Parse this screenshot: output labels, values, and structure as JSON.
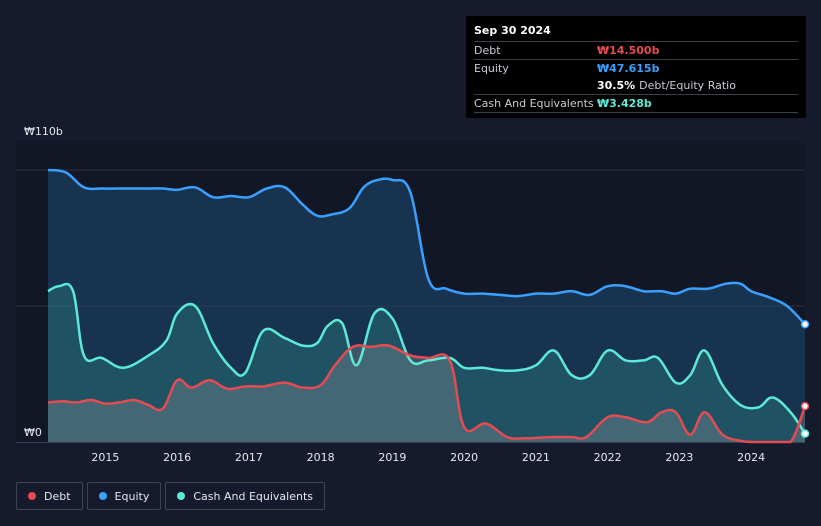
{
  "chart_data": {
    "type": "area",
    "title": "",
    "xlabel": "",
    "ylabel": "",
    "y_axis": {
      "max_label": "₩110b",
      "min_label": "₩0",
      "ylim": [
        0,
        110
      ]
    },
    "x_axis": {
      "ticks": [
        "2015",
        "2016",
        "2017",
        "2018",
        "2019",
        "2020",
        "2021",
        "2022",
        "2023",
        "2024"
      ],
      "xlim": [
        2014.2,
        2024.75
      ]
    },
    "grid": true,
    "legend_position": "bottom-left",
    "series": [
      {
        "name": "Debt",
        "color": "#e64a52",
        "x": [
          2014.2,
          2014.4,
          2014.6,
          2014.8,
          2015.0,
          2015.2,
          2015.4,
          2015.6,
          2015.8,
          2016.0,
          2016.2,
          2016.45,
          2016.7,
          2016.95,
          2017.2,
          2017.5,
          2017.75,
          2018.0,
          2018.2,
          2018.45,
          2018.7,
          2018.95,
          2019.25,
          2019.5,
          2019.8,
          2020.0,
          2020.3,
          2020.6,
          2020.85,
          2021.2,
          2021.5,
          2021.7,
          2022.0,
          2022.25,
          2022.55,
          2022.75,
          2022.95,
          2023.15,
          2023.35,
          2023.6,
          2023.85,
          2024.0,
          2024.3,
          2024.55,
          2024.75
        ],
        "values": [
          16,
          16.5,
          16,
          17,
          15.5,
          16,
          17,
          15,
          13.5,
          25,
          22,
          25,
          21.5,
          22.5,
          22.5,
          24,
          22,
          23,
          31,
          38.5,
          38.5,
          39,
          35,
          34,
          33,
          6,
          7.5,
          2,
          1.5,
          2,
          2,
          2,
          10,
          10,
          8,
          12,
          12,
          3,
          12,
          3,
          0.5,
          0,
          0,
          0,
          14.5
        ]
      },
      {
        "name": "Equity",
        "color": "#3aa0ff",
        "x": [
          2014.2,
          2014.45,
          2014.7,
          2014.95,
          2015.2,
          2015.5,
          2015.8,
          2016.0,
          2016.25,
          2016.5,
          2016.75,
          2017.0,
          2017.25,
          2017.5,
          2017.75,
          2017.95,
          2018.15,
          2018.4,
          2018.6,
          2018.8,
          2019.0,
          2019.25,
          2019.5,
          2019.75,
          2020.0,
          2020.25,
          2020.5,
          2020.75,
          2021.0,
          2021.25,
          2021.5,
          2021.75,
          2022.0,
          2022.25,
          2022.5,
          2022.75,
          2022.95,
          2023.15,
          2023.4,
          2023.65,
          2023.85,
          2024.0,
          2024.25,
          2024.5,
          2024.75
        ],
        "values": [
          110,
          109,
          103,
          102.5,
          102.5,
          102.5,
          102.5,
          102,
          103,
          99,
          99.5,
          99,
          102.5,
          103,
          96,
          91.5,
          92,
          94.5,
          103,
          106,
          106,
          101,
          66,
          62,
          60,
          60,
          59.5,
          59,
          60,
          60,
          61,
          59.5,
          63,
          63,
          61,
          61,
          60,
          62,
          62,
          64,
          64,
          61,
          58.5,
          55,
          47.6
        ]
      },
      {
        "name": "Cash And Equivalents",
        "color": "#5de9d7",
        "x": [
          2014.2,
          2014.35,
          2014.55,
          2014.7,
          2014.95,
          2015.25,
          2015.6,
          2015.85,
          2016.0,
          2016.25,
          2016.5,
          2016.75,
          2016.95,
          2017.2,
          2017.5,
          2017.75,
          2017.95,
          2018.1,
          2018.3,
          2018.5,
          2018.75,
          2019.0,
          2019.25,
          2019.5,
          2019.8,
          2020.0,
          2020.25,
          2020.5,
          2020.75,
          2021.0,
          2021.25,
          2021.5,
          2021.75,
          2022.0,
          2022.25,
          2022.5,
          2022.7,
          2022.95,
          2023.15,
          2023.35,
          2023.6,
          2023.85,
          2024.1,
          2024.3,
          2024.55,
          2024.75
        ],
        "values": [
          61,
          63,
          61,
          35,
          34,
          30,
          35,
          41,
          52,
          55,
          40,
          30,
          28,
          45,
          42,
          39,
          40,
          47,
          48,
          31,
          52,
          50,
          33,
          33,
          34,
          30,
          30,
          29,
          29,
          31,
          37,
          27,
          27,
          37,
          33,
          33,
          34,
          24,
          27,
          37,
          23,
          15,
          14,
          18,
          12,
          3.4
        ]
      }
    ]
  },
  "tooltip": {
    "date": "Sep 30 2024",
    "debt_label": "Debt",
    "debt_value": "₩14.500b",
    "equity_label": "Equity",
    "equity_value": "₩47.615b",
    "ratio_value": "30.5%",
    "ratio_label": "Debt/Equity Ratio",
    "cash_label": "Cash And Equivalents",
    "cash_value": "₩3.428b"
  },
  "legend": [
    {
      "label": "Debt",
      "color": "#e64a52"
    },
    {
      "label": "Equity",
      "color": "#3aa0ff"
    },
    {
      "label": "Cash And Equivalents",
      "color": "#5de9d7"
    }
  ],
  "colors": {
    "background": "#151b2c",
    "plot_past": "#111724",
    "grid": "#2a3040",
    "debt": "#e64a52",
    "equity": "#3aa0ff",
    "cash": "#5de9d7"
  }
}
